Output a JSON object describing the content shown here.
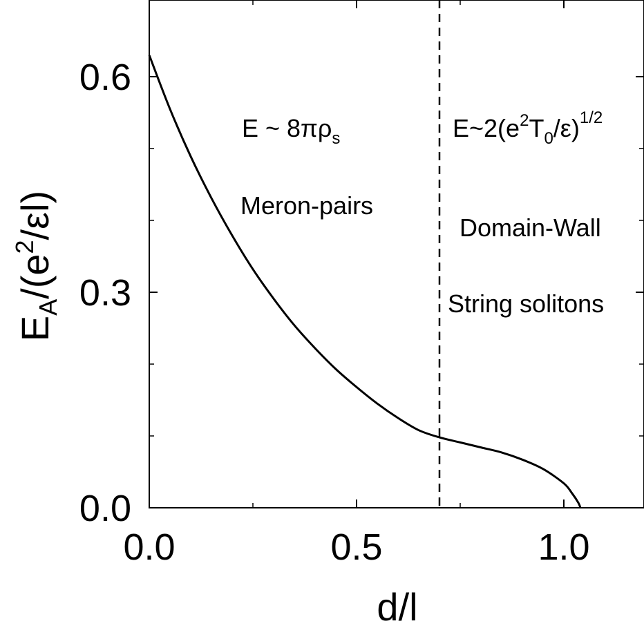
{
  "chart_data": {
    "type": "line",
    "xlabel": "d/l",
    "ylabel": {
      "base": "E",
      "sub": "A",
      "mid": "/(e",
      "sup": "2",
      "tail": "/εl)"
    },
    "xlim": [
      0,
      1.2
    ],
    "ylim": [
      0,
      0.7
    ],
    "xticks": [
      {
        "value": 0.0,
        "label": "0.0"
      },
      {
        "value": 0.5,
        "label": "0.5"
      },
      {
        "value": 1.0,
        "label": "1.0"
      }
    ],
    "xminor": [
      0.25,
      0.75
    ],
    "yticks": [
      {
        "value": 0.0,
        "label": "0.0"
      },
      {
        "value": 0.3,
        "label": "0.3"
      },
      {
        "value": 0.6,
        "label": "0.6"
      }
    ],
    "yminor": [
      0.1,
      0.2,
      0.4,
      0.5
    ],
    "grid": false,
    "series": [
      {
        "color": "#000000",
        "x": [
          0.0,
          0.05,
          0.1,
          0.15,
          0.2,
          0.25,
          0.3,
          0.35,
          0.4,
          0.45,
          0.5,
          0.55,
          0.6,
          0.65,
          0.7,
          0.75,
          0.8,
          0.85,
          0.9,
          0.95,
          1.0,
          1.02,
          1.035,
          1.04
        ],
        "y": [
          0.63,
          0.555,
          0.489,
          0.431,
          0.379,
          0.332,
          0.291,
          0.254,
          0.222,
          0.193,
          0.168,
          0.145,
          0.125,
          0.108,
          0.098,
          0.091,
          0.084,
          0.077,
          0.067,
          0.054,
          0.034,
          0.02,
          0.007,
          0.0
        ]
      }
    ],
    "vline": {
      "x": 0.7,
      "style": "dashed"
    },
    "annotations": {
      "left_formula": {
        "text": "E ~ 8πρ",
        "sub": "s"
      },
      "left_label": "Meron-pairs",
      "right_formula": {
        "a": "E~2(e",
        "sup1": "2",
        "b": "T",
        "sub": "0",
        "c": "/ε)",
        "sup2": "1/2"
      },
      "right_label1": "Domain-Wall",
      "right_label2": "String solitons"
    }
  }
}
